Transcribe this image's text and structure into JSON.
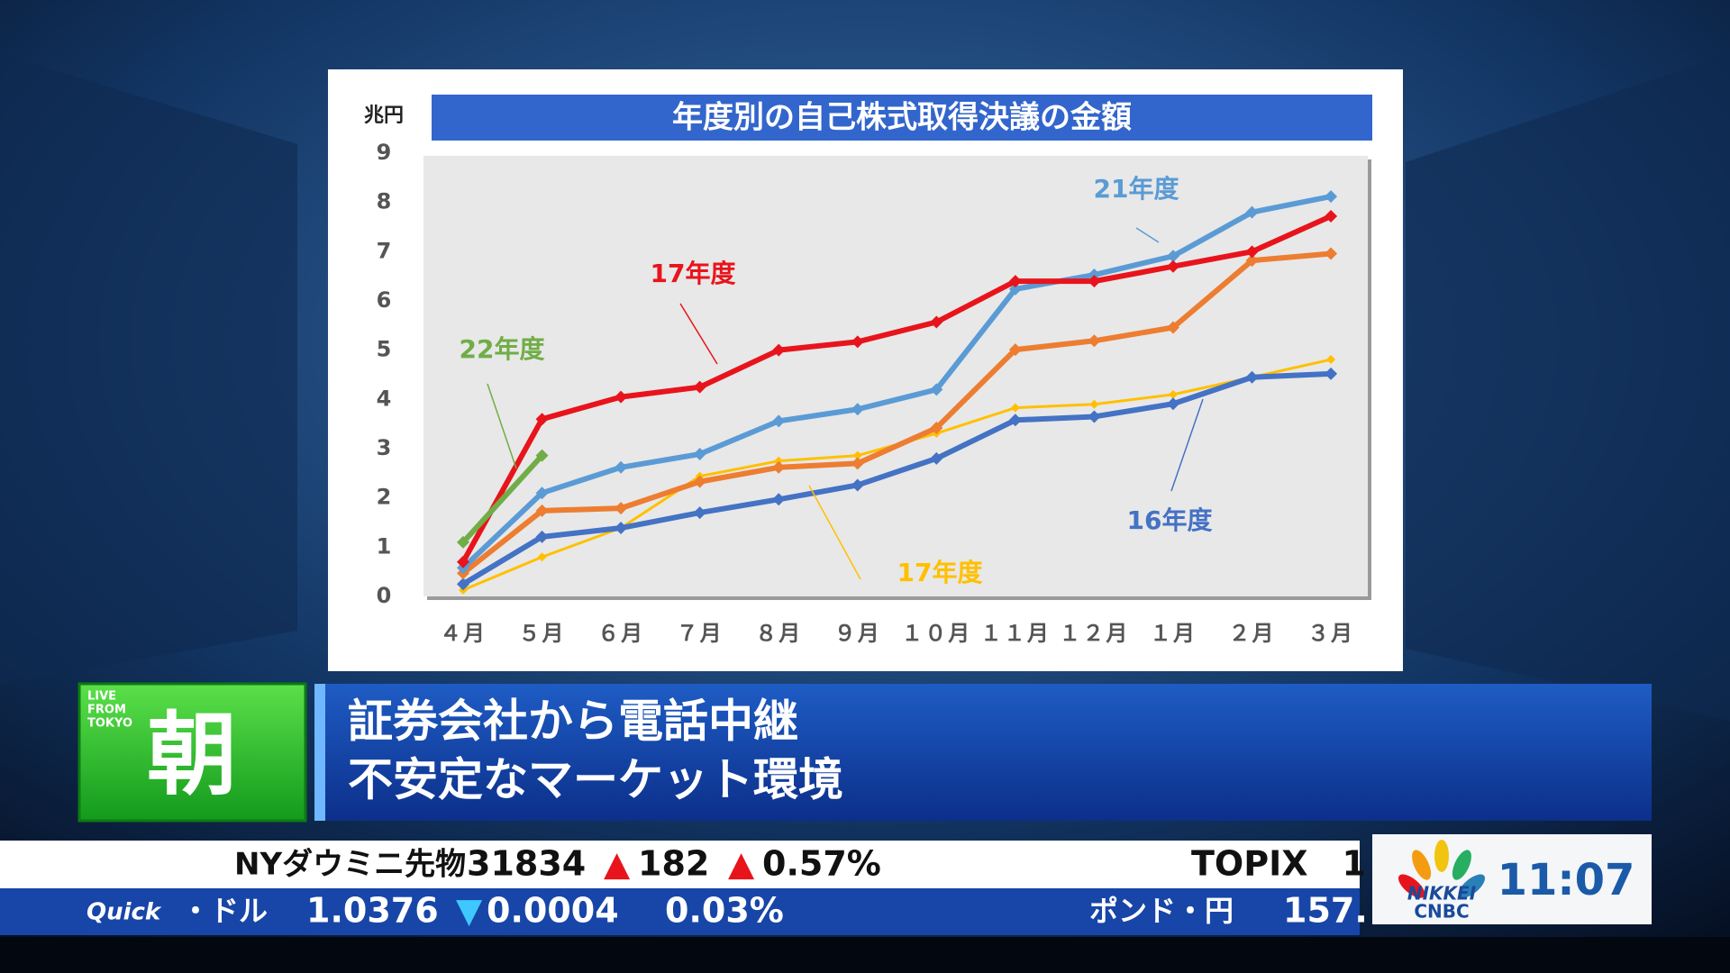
{
  "chart_data": {
    "type": "line",
    "title": "年度別の自己株式取得決議の金額",
    "y_unit": "兆円",
    "categories": [
      "４月",
      "５月",
      "６月",
      "７月",
      "８月",
      "９月",
      "１０月",
      "１１月",
      "１２月",
      "１月",
      "２月",
      "３月"
    ],
    "ylim": [
      0,
      9
    ],
    "yticks": [
      0,
      1,
      2,
      3,
      4,
      5,
      6,
      7,
      8,
      9
    ],
    "series": [
      {
        "color": "#ffc000",
        "values": [
          0.13,
          0.8,
          1.39,
          2.44,
          2.75,
          2.86,
          3.31,
          3.83,
          3.9,
          4.1,
          4.45,
          4.81
        ]
      },
      {
        "color": "#4472c4",
        "values": [
          0.25,
          1.21,
          1.39,
          1.7,
          1.97,
          2.26,
          2.8,
          3.58,
          3.65,
          3.91,
          4.45,
          4.52
        ]
      },
      {
        "color": "#ed7d31",
        "values": [
          0.47,
          1.74,
          1.79,
          2.33,
          2.62,
          2.7,
          3.42,
          5.01,
          5.19,
          5.46,
          6.82,
          6.96
        ]
      },
      {
        "color": "#5b9bd5",
        "values": [
          0.58,
          2.1,
          2.62,
          2.89,
          3.56,
          3.8,
          4.2,
          6.24,
          6.53,
          6.91,
          7.8,
          8.12
        ]
      },
      {
        "color": "#e8141c",
        "values": [
          0.7,
          3.6,
          4.05,
          4.25,
          5.0,
          5.17,
          5.57,
          6.4,
          6.4,
          6.7,
          7.0,
          7.72
        ]
      },
      {
        "color": "#70ad47",
        "values": [
          1.1,
          2.86,
          null,
          null,
          null,
          null,
          null,
          null,
          null,
          null,
          null,
          null
        ]
      }
    ],
    "annotations": [
      {
        "text": "21年度",
        "color": "#5b9bd5"
      },
      {
        "text": "17年度",
        "color": "#e8141c"
      },
      {
        "text": "22年度",
        "color": "#70ad47"
      },
      {
        "text": "16年度",
        "color": "#4472c4"
      },
      {
        "text": "17年度",
        "color": "#ffc000"
      }
    ]
  },
  "banner": {
    "live": [
      "LIVE",
      "FROM",
      "TOKYO"
    ],
    "program": "朝",
    "headline": [
      "証券会社から電話中継",
      "不安定なマーケット環境"
    ]
  },
  "ticker": {
    "row1": {
      "name": "NYダウミニ先物",
      "price": "31834",
      "change_mark": "▲",
      "change": "182",
      "pct_mark": "▲",
      "pct": "0.57%",
      "next": "TOPIX　1"
    },
    "row2": {
      "source": "Quick",
      "name": "・ドル",
      "price": "1.0376",
      "change_mark": "▼",
      "change": "0.0004",
      "pct": "0.03%",
      "next": "ポンド・円",
      "next_price": "157."
    }
  },
  "logo": {
    "brand": [
      "NIKKEI",
      "CNBC"
    ],
    "time": "11:07"
  }
}
